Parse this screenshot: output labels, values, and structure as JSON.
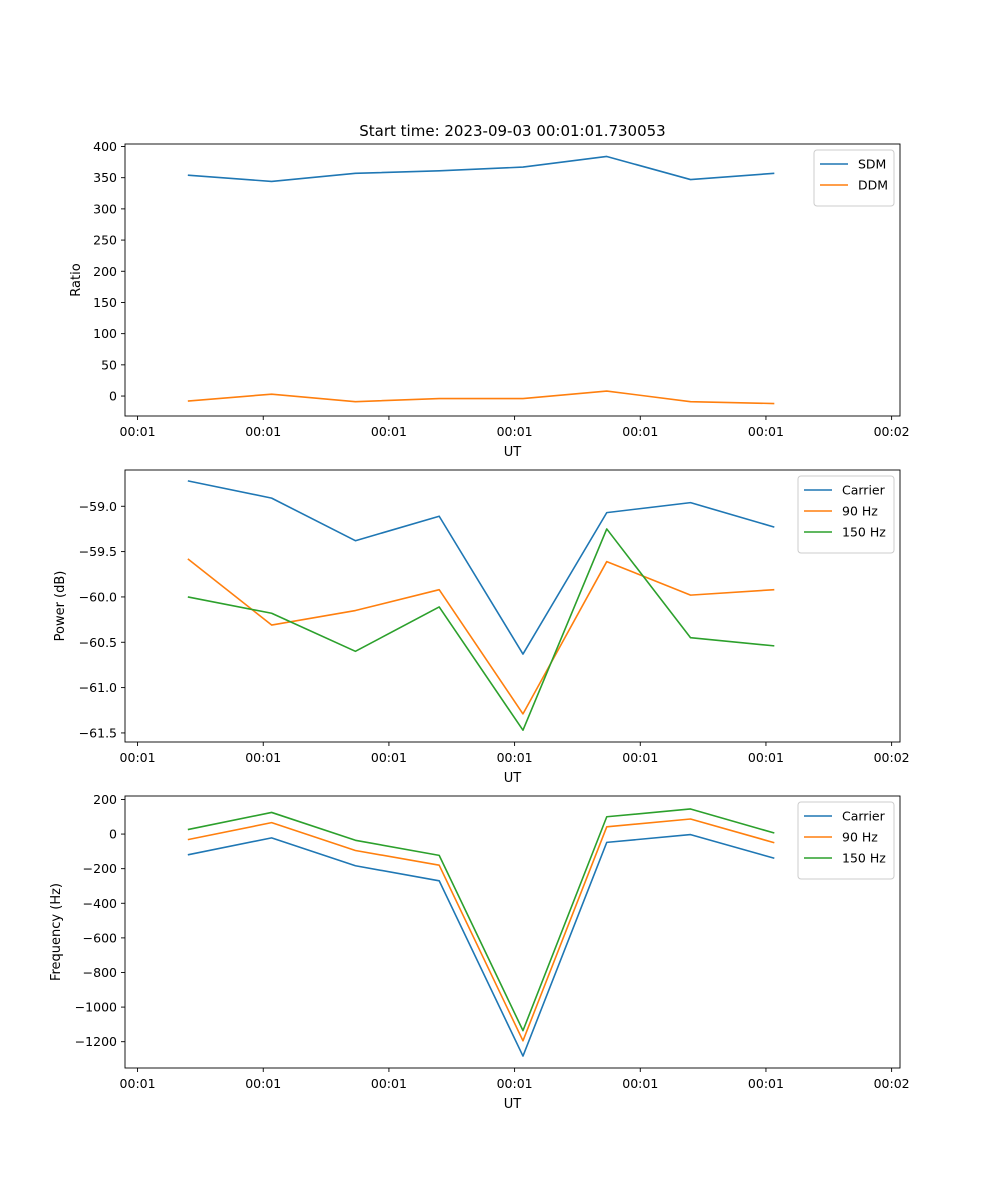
{
  "chart_data": [
    {
      "type": "line",
      "title": "Start time: 2023-09-03 00:01:01.730053",
      "xlabel": "UT",
      "ylabel": "Ratio",
      "x": [
        0,
        1,
        2,
        3,
        4,
        5,
        6,
        7
      ],
      "xlim": [
        -0.75,
        8.5
      ],
      "xticks": [
        -0.6,
        0.9,
        2.4,
        3.9,
        5.4,
        6.9,
        8.4
      ],
      "xticklabels": [
        "00:01",
        "00:01",
        "00:01",
        "00:01",
        "00:01",
        "00:01",
        "00:02"
      ],
      "ylim": [
        -32,
        404
      ],
      "yticks": [
        0,
        50,
        100,
        150,
        200,
        250,
        300,
        350,
        400
      ],
      "yticklabels": [
        "0",
        "50",
        "100",
        "150",
        "200",
        "250",
        "300",
        "350",
        "400"
      ],
      "legend": "top-right",
      "grid": false,
      "series": [
        {
          "name": "SDM",
          "color": "#1f77b4",
          "values": [
            354,
            344,
            357,
            361,
            367,
            384,
            347,
            357
          ]
        },
        {
          "name": "DDM",
          "color": "#ff7f0e",
          "values": [
            -8,
            3,
            -9,
            -4,
            -4,
            8,
            -9,
            -12
          ]
        }
      ]
    },
    {
      "type": "line",
      "title": "",
      "xlabel": "UT",
      "ylabel": "Power (dB)",
      "x": [
        0,
        1,
        2,
        3,
        4,
        5,
        6,
        7
      ],
      "xlim": [
        -0.75,
        8.5
      ],
      "xticks": [
        -0.6,
        0.9,
        2.4,
        3.9,
        5.4,
        6.9,
        8.4
      ],
      "xticklabels": [
        "00:01",
        "00:01",
        "00:01",
        "00:01",
        "00:01",
        "00:01",
        "00:02"
      ],
      "ylim": [
        -61.6,
        -58.6
      ],
      "yticks": [
        -59.0,
        -59.5,
        -60.0,
        -60.5,
        -61.0,
        -61.5
      ],
      "yticklabels": [
        "−59.0",
        "−59.5",
        "−60.0",
        "−60.5",
        "−61.0",
        "−61.5"
      ],
      "legend": "top-right",
      "grid": false,
      "series": [
        {
          "name": "Carrier",
          "color": "#1f77b4",
          "values": [
            -58.72,
            -58.91,
            -59.38,
            -59.11,
            -60.63,
            -59.07,
            -58.96,
            -59.23
          ]
        },
        {
          "name": "90 Hz",
          "color": "#ff7f0e",
          "values": [
            -59.58,
            -60.31,
            -60.15,
            -59.92,
            -61.29,
            -59.61,
            -59.98,
            -59.92
          ]
        },
        {
          "name": "150 Hz",
          "color": "#2ca02c",
          "values": [
            -60.0,
            -60.18,
            -60.6,
            -60.11,
            -61.47,
            -59.25,
            -60.45,
            -60.54
          ]
        }
      ]
    },
    {
      "type": "line",
      "title": "",
      "xlabel": "UT",
      "ylabel": "Frequency (Hz)",
      "x": [
        0,
        1,
        2,
        3,
        4,
        5,
        6,
        7
      ],
      "xlim": [
        -0.75,
        8.5
      ],
      "xticks": [
        -0.6,
        0.9,
        2.4,
        3.9,
        5.4,
        6.9,
        8.4
      ],
      "xticklabels": [
        "00:01",
        "00:01",
        "00:01",
        "00:01",
        "00:01",
        "00:01",
        "00:02"
      ],
      "ylim": [
        -1352,
        220
      ],
      "yticks": [
        200,
        0,
        -200,
        -400,
        -600,
        -800,
        -1000,
        -1200
      ],
      "yticklabels": [
        "200",
        "0",
        "−200",
        "−400",
        "−600",
        "−800",
        "−1000",
        "−1200"
      ],
      "legend": "top-right",
      "grid": false,
      "series": [
        {
          "name": "Carrier",
          "color": "#1f77b4",
          "values": [
            -120,
            -22,
            -183,
            -270,
            -1283,
            -48,
            -3,
            -140
          ]
        },
        {
          "name": "90 Hz",
          "color": "#ff7f0e",
          "values": [
            -32,
            66,
            -95,
            -180,
            -1195,
            42,
            87,
            -50
          ]
        },
        {
          "name": "150 Hz",
          "color": "#2ca02c",
          "values": [
            26,
            125,
            -36,
            -123,
            -1136,
            100,
            145,
            6
          ]
        }
      ]
    }
  ]
}
